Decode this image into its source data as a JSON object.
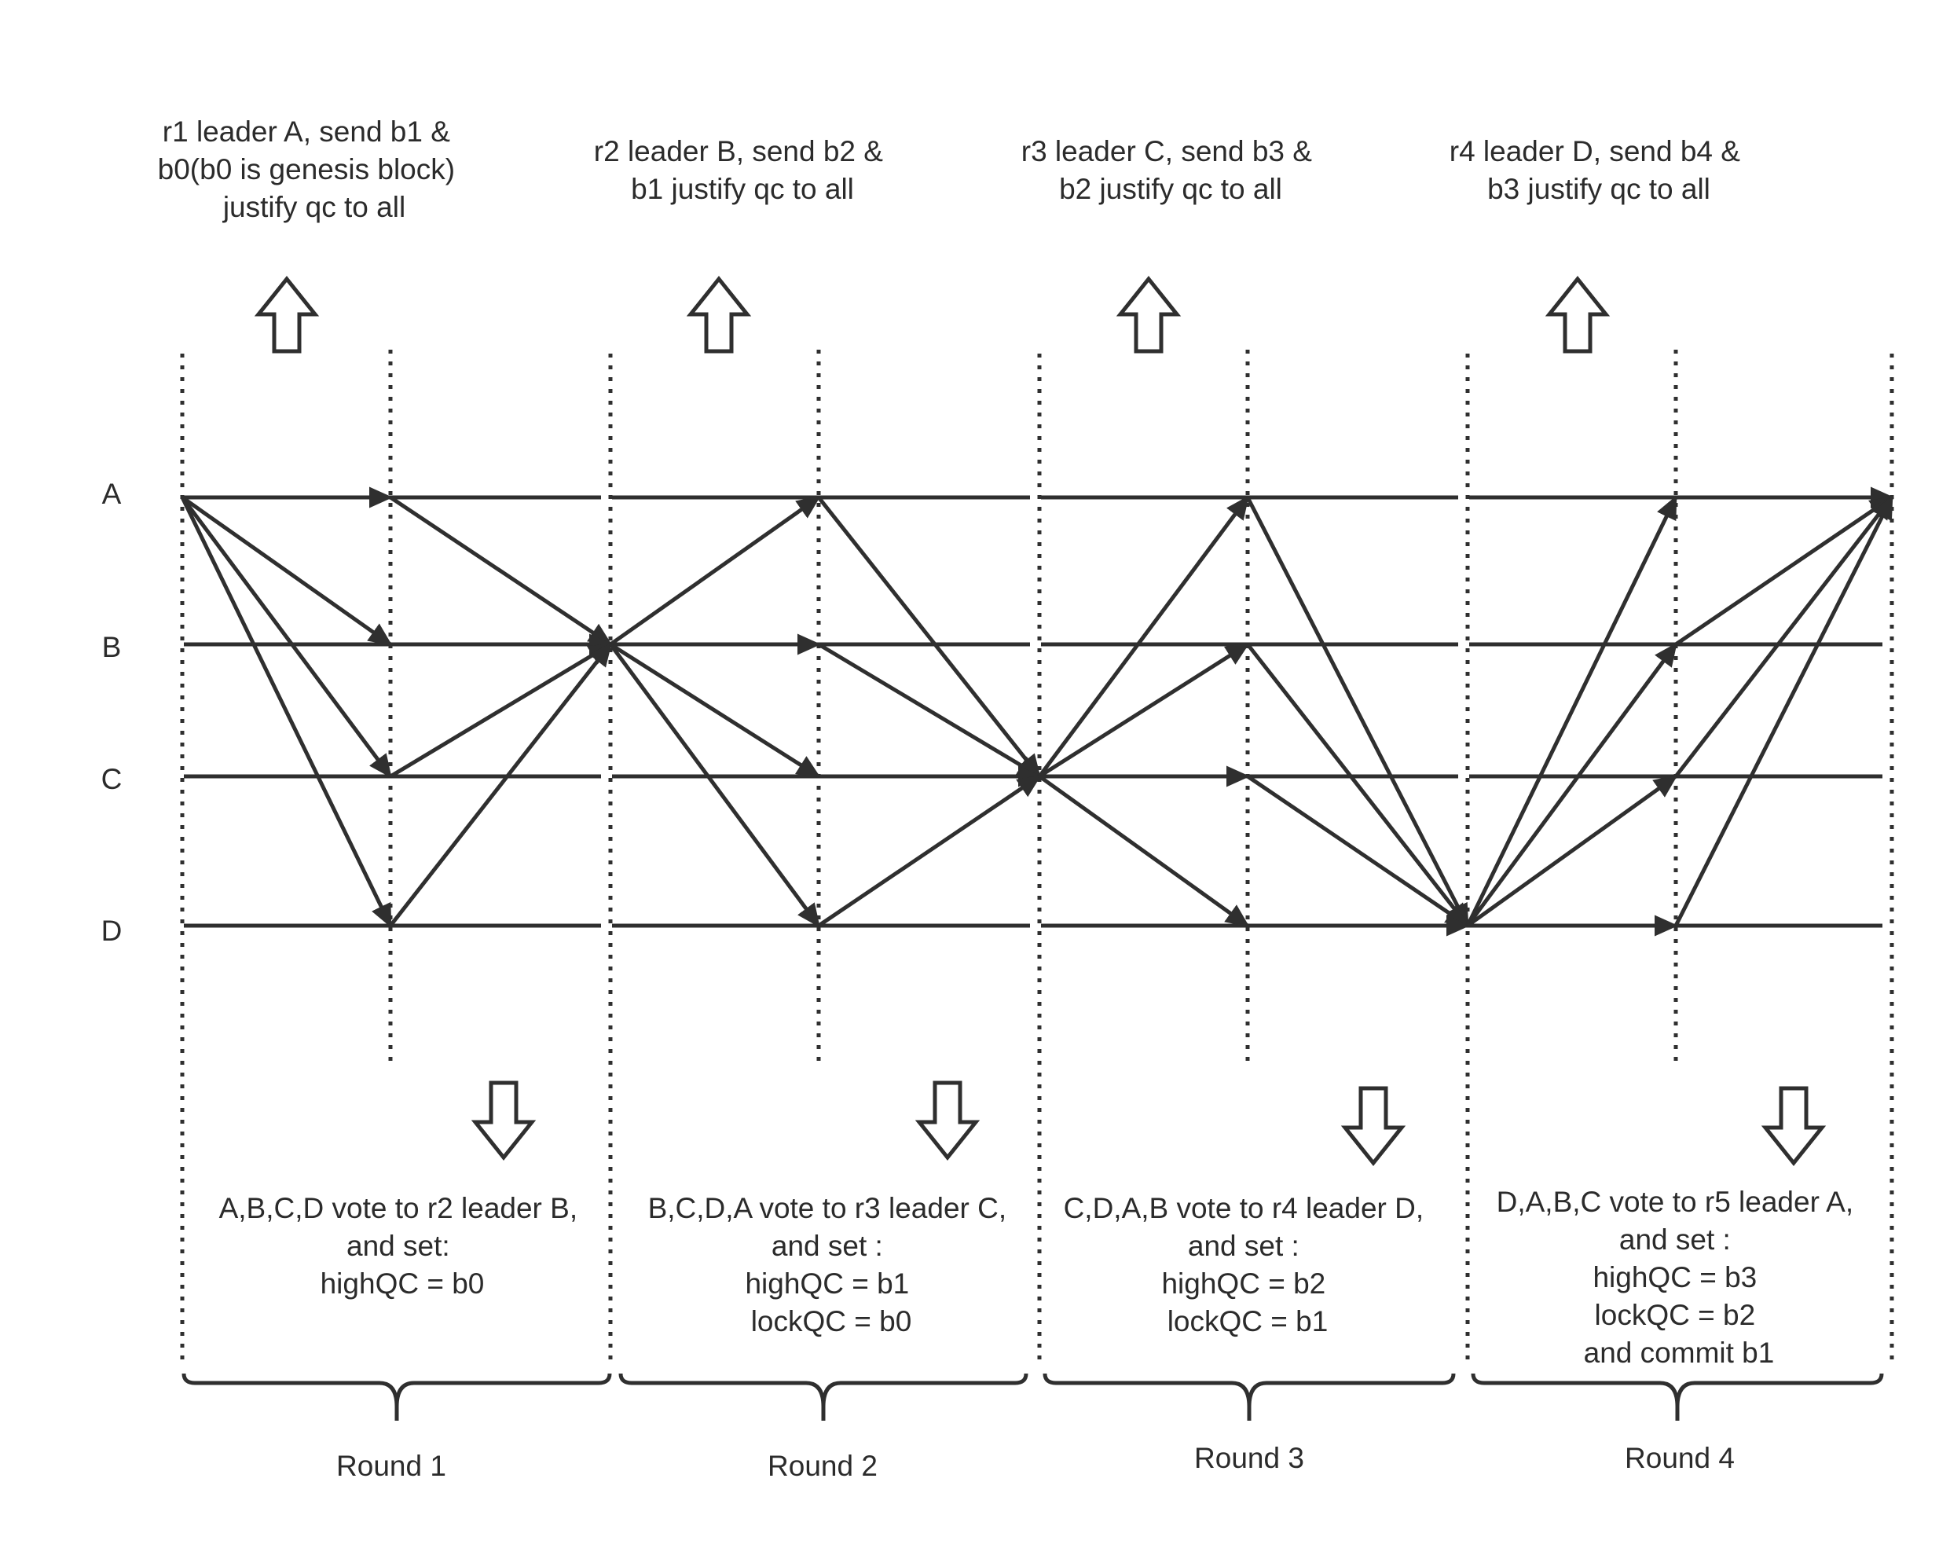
{
  "nodes": [
    "A",
    "B",
    "C",
    "D"
  ],
  "top_notes": [
    [
      "r1 leader A, send b1 &",
      "b0(b0 is genesis block)",
      "justify qc to all"
    ],
    [
      "r2 leader B, send b2 &",
      "b1 justify qc to all"
    ],
    [
      "r3 leader C, send b3 &",
      "b2 justify qc to all"
    ],
    [
      "r4 leader D, send b4 &",
      "b3 justify qc to all"
    ]
  ],
  "bottom_notes": [
    [
      "A,B,C,D vote to r2 leader B,",
      "and set:",
      "highQC = b0"
    ],
    [
      "B,C,D,A vote to r3 leader C,",
      "and set :",
      "highQC = b1",
      "lockQC = b0"
    ],
    [
      "C,D,A,B vote to r4 leader D,",
      "and set :",
      "highQC = b2",
      "lockQC = b1"
    ],
    [
      "D,A,B,C vote to r5 leader A,",
      "and set :",
      "highQC = b3",
      "lockQC = b2",
      "and commit b1"
    ]
  ],
  "rounds": [
    "Round 1",
    "Round 2",
    "Round 3",
    "Round 4"
  ],
  "rounds_config": [
    {
      "leader": "A",
      "next_leader": "B"
    },
    {
      "leader": "B",
      "next_leader": "C"
    },
    {
      "leader": "C",
      "next_leader": "D"
    },
    {
      "leader": "D",
      "next_leader": "A"
    }
  ]
}
